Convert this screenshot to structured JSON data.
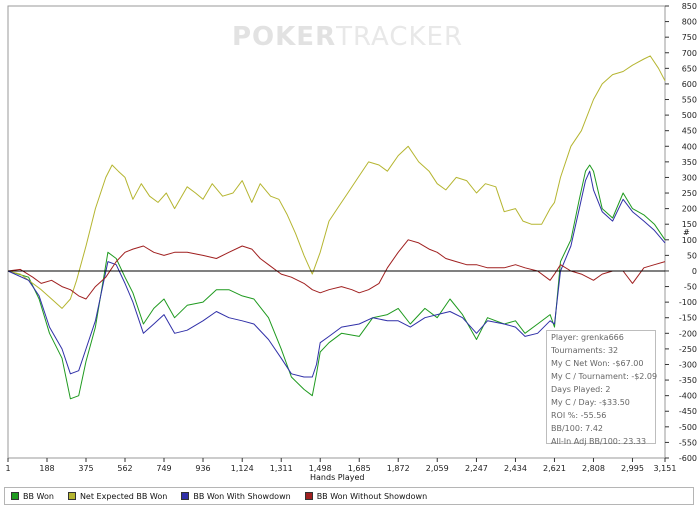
{
  "watermark": {
    "bold": "POKER",
    "thin": "TRACKER"
  },
  "chart_data": {
    "type": "line",
    "title": "",
    "xlabel": "Hands Played",
    "ylabel": "#",
    "xlim": [
      1,
      3151
    ],
    "ylim": [
      -600,
      850
    ],
    "x_ticks": [
      1,
      188,
      375,
      562,
      749,
      936,
      1124,
      1311,
      1498,
      1685,
      1872,
      2059,
      2247,
      2434,
      2621,
      2808,
      2995,
      3151
    ],
    "x_tick_labels": [
      "1",
      "188",
      "375",
      "562",
      "749",
      "936",
      "1,124",
      "1,311",
      "1,498",
      "1,685",
      "1,872",
      "2,059",
      "2,247",
      "2,434",
      "2,621",
      "2,808",
      "2,995",
      "3,151"
    ],
    "y_ticks": [
      -600,
      -550,
      -500,
      -450,
      -400,
      -350,
      -300,
      -250,
      -200,
      -150,
      -100,
      -50,
      0,
      50,
      100,
      150,
      200,
      250,
      300,
      350,
      400,
      450,
      500,
      550,
      600,
      650,
      700,
      750,
      800,
      850
    ],
    "series": [
      {
        "name": "BB Won",
        "color": "#1f9a1f",
        "x": [
          1,
          100,
          150,
          200,
          260,
          300,
          340,
          375,
          420,
          480,
          520,
          562,
          600,
          650,
          700,
          749,
          800,
          860,
          936,
          1000,
          1060,
          1124,
          1180,
          1250,
          1311,
          1360,
          1420,
          1460,
          1480,
          1498,
          1540,
          1600,
          1685,
          1750,
          1820,
          1872,
          1930,
          2000,
          2059,
          2120,
          2180,
          2247,
          2300,
          2380,
          2434,
          2480,
          2540,
          2600,
          2621,
          2650,
          2700,
          2740,
          2770,
          2790,
          2808,
          2850,
          2900,
          2950,
          2995,
          3050,
          3100,
          3151
        ],
        "values": [
          0,
          -20,
          -90,
          -200,
          -280,
          -410,
          -400,
          -290,
          -180,
          60,
          40,
          -20,
          -70,
          -170,
          -120,
          -90,
          -150,
          -110,
          -100,
          -60,
          -60,
          -80,
          -90,
          -150,
          -250,
          -340,
          -380,
          -400,
          -330,
          -260,
          -230,
          -200,
          -210,
          -150,
          -140,
          -120,
          -170,
          -120,
          -150,
          -90,
          -140,
          -220,
          -150,
          -170,
          -160,
          -200,
          -170,
          -140,
          -180,
          30,
          100,
          230,
          320,
          340,
          320,
          200,
          170,
          250,
          200,
          180,
          150,
          100
        ]
      },
      {
        "name": "Net Expected BB Won",
        "color": "#b5b530",
        "x": [
          1,
          60,
          120,
          160,
          210,
          260,
          300,
          330,
          375,
          420,
          470,
          500,
          530,
          562,
          600,
          640,
          680,
          720,
          760,
          800,
          860,
          900,
          936,
          980,
          1030,
          1080,
          1124,
          1170,
          1210,
          1260,
          1300,
          1340,
          1380,
          1420,
          1460,
          1498,
          1540,
          1580,
          1630,
          1680,
          1730,
          1780,
          1820,
          1872,
          1920,
          1970,
          2020,
          2059,
          2100,
          2150,
          2200,
          2247,
          2290,
          2340,
          2380,
          2434,
          2470,
          2510,
          2560,
          2600,
          2621,
          2650,
          2700,
          2750,
          2808,
          2850,
          2900,
          2950,
          2995,
          3050,
          3080,
          3120,
          3151
        ],
        "values": [
          0,
          -10,
          -40,
          -60,
          -90,
          -120,
          -90,
          -30,
          80,
          200,
          300,
          340,
          320,
          300,
          230,
          280,
          240,
          220,
          250,
          200,
          270,
          250,
          230,
          280,
          240,
          250,
          290,
          220,
          280,
          240,
          230,
          180,
          120,
          50,
          -10,
          60,
          160,
          200,
          250,
          300,
          350,
          340,
          320,
          370,
          400,
          350,
          320,
          280,
          260,
          300,
          290,
          250,
          280,
          270,
          190,
          200,
          160,
          150,
          150,
          200,
          220,
          300,
          400,
          450,
          550,
          600,
          630,
          640,
          660,
          680,
          690,
          650,
          610
        ]
      },
      {
        "name": "BB Won With Showdown",
        "color": "#3030a8",
        "x": [
          1,
          100,
          150,
          200,
          260,
          300,
          340,
          375,
          420,
          480,
          520,
          562,
          600,
          650,
          700,
          749,
          800,
          860,
          936,
          1000,
          1060,
          1124,
          1180,
          1250,
          1311,
          1360,
          1420,
          1460,
          1480,
          1498,
          1540,
          1600,
          1685,
          1750,
          1820,
          1872,
          1930,
          2000,
          2059,
          2120,
          2180,
          2247,
          2300,
          2380,
          2434,
          2480,
          2540,
          2600,
          2621,
          2650,
          2700,
          2740,
          2770,
          2790,
          2808,
          2850,
          2900,
          2950,
          2995,
          3050,
          3100,
          3151
        ],
        "values": [
          0,
          -30,
          -80,
          -180,
          -250,
          -330,
          -320,
          -250,
          -160,
          30,
          20,
          -40,
          -100,
          -200,
          -170,
          -140,
          -200,
          -190,
          -160,
          -130,
          -150,
          -160,
          -170,
          -220,
          -280,
          -330,
          -340,
          -340,
          -300,
          -230,
          -210,
          -180,
          -170,
          -150,
          -160,
          -160,
          -180,
          -150,
          -140,
          -130,
          -150,
          -200,
          -160,
          -170,
          -180,
          -210,
          -200,
          -160,
          -170,
          0,
          80,
          200,
          290,
          320,
          260,
          190,
          160,
          230,
          190,
          160,
          130,
          90
        ]
      },
      {
        "name": "BB Won Without Showdown",
        "color": "#a02020",
        "x": [
          1,
          60,
          120,
          160,
          210,
          260,
          300,
          340,
          375,
          420,
          470,
          520,
          562,
          600,
          650,
          700,
          749,
          800,
          860,
          936,
          1000,
          1060,
          1124,
          1170,
          1210,
          1250,
          1311,
          1360,
          1420,
          1460,
          1498,
          1540,
          1600,
          1650,
          1685,
          1730,
          1780,
          1820,
          1872,
          1920,
          1970,
          2020,
          2059,
          2100,
          2150,
          2200,
          2247,
          2300,
          2380,
          2434,
          2480,
          2540,
          2600,
          2621,
          2650,
          2700,
          2750,
          2808,
          2850,
          2900,
          2950,
          2995,
          3050,
          3100,
          3151
        ],
        "values": [
          0,
          5,
          -20,
          -40,
          -30,
          -50,
          -60,
          -80,
          -90,
          -50,
          -20,
          30,
          60,
          70,
          80,
          60,
          50,
          60,
          60,
          50,
          40,
          60,
          80,
          70,
          40,
          20,
          -10,
          -20,
          -40,
          -60,
          -70,
          -60,
          -50,
          -60,
          -70,
          -60,
          -40,
          10,
          60,
          100,
          90,
          70,
          60,
          40,
          30,
          20,
          20,
          10,
          10,
          20,
          10,
          0,
          -30,
          -10,
          20,
          0,
          -10,
          -30,
          -10,
          0,
          0,
          -40,
          10,
          20,
          30
        ]
      }
    ]
  },
  "stats": {
    "player": "Player: grenka666",
    "tournaments": "Tournaments: 32",
    "net_won": "My C Net Won: -$67.00",
    "per_tournament": "My C / Tournament: -$2.09",
    "days_played": "Days Played: 2",
    "per_day": "My C / Day: -$33.50",
    "roi": "ROI %: -55.56",
    "bb100": "BB/100: 7.42",
    "allin_bb100": "All-In Adj BB/100: 23.33"
  },
  "legend": {
    "items": [
      {
        "label": "BB Won",
        "color": "#1f9a1f"
      },
      {
        "label": "Net Expected BB Won",
        "color": "#b5b530"
      },
      {
        "label": "BB Won With Showdown",
        "color": "#3030a8"
      },
      {
        "label": "BB Won Without Showdown",
        "color": "#a02020"
      }
    ]
  }
}
